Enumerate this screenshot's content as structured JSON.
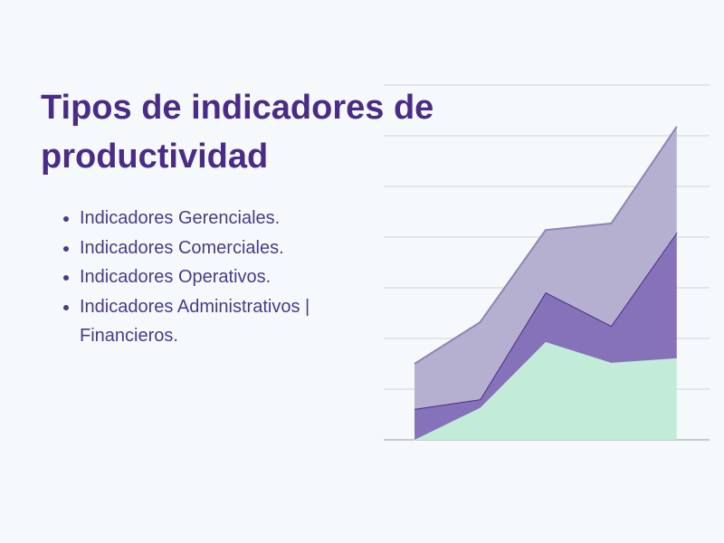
{
  "title": "Tipos de indicadores de productividad",
  "bullets": [
    "Indicadores Gerenciales.",
    "Indicadores Comerciales.",
    "Indicadores Operativos.",
    "Indicadores Administrativos | Financieros."
  ],
  "chart_data": {
    "type": "stacked_area",
    "x": [
      0,
      1,
      2,
      3,
      4
    ],
    "xlim": [
      -0.47,
      4.5
    ],
    "ylim": [
      0,
      7
    ],
    "yticks": [
      0,
      1,
      2,
      3,
      4,
      5,
      6,
      7
    ],
    "grid": true,
    "series": [
      {
        "color": "#c2ecd8",
        "line": "#c2ecd8",
        "values": [
          0,
          0.63,
          1.93,
          1.52,
          1.61
        ]
      },
      {
        "color": "#8672b8",
        "line": "#4b2a8a",
        "values": [
          0.61,
          0.17,
          0.98,
          0.73,
          2.48
        ]
      },
      {
        "color": "#b5b0d0",
        "line": "#8d85b5",
        "values": [
          0.89,
          1.52,
          1.23,
          2.02,
          2.09
        ]
      }
    ]
  }
}
